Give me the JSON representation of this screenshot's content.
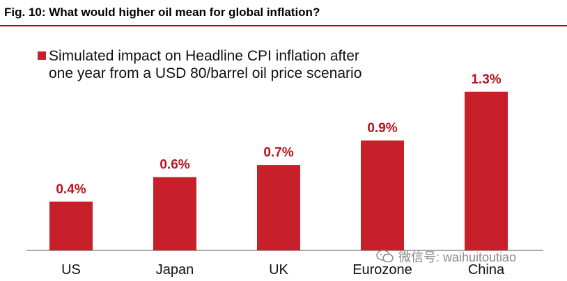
{
  "figure": {
    "title": "Fig. 10: What would higher oil mean for global inflation?"
  },
  "chart_data": {
    "type": "bar",
    "title": "Fig. 10: What would higher oil mean for global inflation?",
    "categories": [
      "US",
      "Japan",
      "UK",
      "Eurozone",
      "China"
    ],
    "series": [
      {
        "name": "Simulated impact on Headline CPI inflation after one year from a USD 80/barrel oil price scenario",
        "values": [
          0.4,
          0.6,
          0.7,
          0.9,
          1.3
        ],
        "labels": [
          "0.4%",
          "0.6%",
          "0.7%",
          "0.9%",
          "1.3%"
        ]
      }
    ],
    "legend": {
      "line1": "Simulated impact on Headline CPI inflation after",
      "line2": "one year from a USD 80/barrel oil price scenario",
      "position": "top-left"
    },
    "xlabel": "",
    "ylabel": "",
    "ylim": [
      0,
      1.35
    ],
    "grid": false,
    "bar_color": "#c8202a",
    "label_color": "#b8121c"
  },
  "watermark": {
    "text": "微信号: waihuitoutiao"
  }
}
